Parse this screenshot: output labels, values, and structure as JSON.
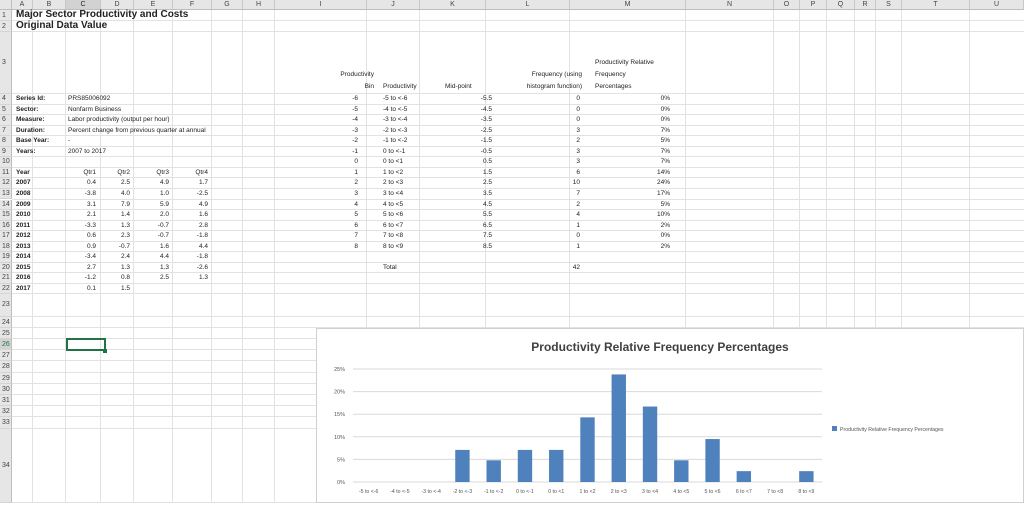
{
  "columns": [
    "A",
    "B",
    "C",
    "D",
    "E",
    "F",
    "G",
    "H",
    "I",
    "J",
    "K",
    "L",
    "M",
    "N",
    "O",
    "P",
    "Q",
    "R",
    "S",
    "T",
    "U"
  ],
  "rows": [
    "1",
    "2",
    "3",
    "4",
    "5",
    "6",
    "7",
    "8",
    "9",
    "10",
    "11",
    "12",
    "13",
    "14",
    "15",
    "16",
    "17",
    "18",
    "19",
    "20",
    "21",
    "22",
    "23",
    "24",
    "25",
    "26",
    "27",
    "28",
    "29",
    "30",
    "31",
    "32",
    "33",
    "34"
  ],
  "selected_column": "C",
  "selected_row": "26",
  "title": "Major Sector Productivity and Costs",
  "subtitle": "Original Data Value",
  "meta": [
    {
      "label": "Series Id:",
      "value": "PRS85006092"
    },
    {
      "label": "Sector:",
      "value": "Nonfarm Business"
    },
    {
      "label": "Measure:",
      "value": "Labor productivity (output per hour)"
    },
    {
      "label": "Duration:",
      "value": "Percent change from previous quarter at annual"
    },
    {
      "label": "Base Year:",
      "value": "-"
    },
    {
      "label": "Years:",
      "value": "2007 to 2017"
    }
  ],
  "quarter_table": {
    "header": [
      "Year",
      "Qtr1",
      "Qtr2",
      "Qtr3",
      "Qtr4"
    ],
    "rows": [
      [
        "2007",
        "0.4",
        "2.5",
        "4.9",
        "1.7"
      ],
      [
        "2008",
        "-3.8",
        "4.0",
        "1.0",
        "-2.5"
      ],
      [
        "2009",
        "3.1",
        "7.9",
        "5.9",
        "4.9"
      ],
      [
        "2010",
        "2.1",
        "1.4",
        "2.0",
        "1.6"
      ],
      [
        "2011",
        "-3.3",
        "1.3",
        "-0.7",
        "2.8"
      ],
      [
        "2012",
        "0.6",
        "2.3",
        "-0.7",
        "-1.8"
      ],
      [
        "2013",
        "0.9",
        "-0.7",
        "1.6",
        "4.4"
      ],
      [
        "2014",
        "-3.4",
        "2.4",
        "4.4",
        "-1.8"
      ],
      [
        "2015",
        "2.7",
        "1.3",
        "1.3",
        "-2.6"
      ],
      [
        "2016",
        "-1.2",
        "0.8",
        "2.5",
        "1.3"
      ],
      [
        "2017",
        "0.1",
        "1.5",
        "",
        ""
      ]
    ]
  },
  "freq_headers": {
    "bin_line1": "Productivity",
    "bin_line2": "Bin",
    "range": "Productivity",
    "midpoint": "Mid-point",
    "freq_line1": "Frequency (using",
    "freq_line2": "histogram function)",
    "rel_line1": "Productivity Relative",
    "rel_line2": "Frequency",
    "rel_line3": "Percentages"
  },
  "freq_table": [
    {
      "bin": "-6",
      "range": "-5 to <-6",
      "mid": "-5.5",
      "freq": "0",
      "pct": "0%"
    },
    {
      "bin": "-5",
      "range": "-4 to <-5",
      "mid": "-4.5",
      "freq": "0",
      "pct": "0%"
    },
    {
      "bin": "-4",
      "range": "-3 to <-4",
      "mid": "-3.5",
      "freq": "0",
      "pct": "0%"
    },
    {
      "bin": "-3",
      "range": "-2 to <-3",
      "mid": "-2.5",
      "freq": "3",
      "pct": "7%"
    },
    {
      "bin": "-2",
      "range": "-1 to <-2",
      "mid": "-1.5",
      "freq": "2",
      "pct": "5%"
    },
    {
      "bin": "-1",
      "range": "0 to <-1",
      "mid": "-0.5",
      "freq": "3",
      "pct": "7%"
    },
    {
      "bin": "0",
      "range": "0 to <1",
      "mid": "0.5",
      "freq": "3",
      "pct": "7%"
    },
    {
      "bin": "1",
      "range": "1 to <2",
      "mid": "1.5",
      "freq": "6",
      "pct": "14%"
    },
    {
      "bin": "2",
      "range": "2 to <3",
      "mid": "2.5",
      "freq": "10",
      "pct": "24%"
    },
    {
      "bin": "3",
      "range": "3 to <4",
      "mid": "3.5",
      "freq": "7",
      "pct": "17%"
    },
    {
      "bin": "4",
      "range": "4 to <5",
      "mid": "4.5",
      "freq": "2",
      "pct": "5%"
    },
    {
      "bin": "5",
      "range": "5 to <6",
      "mid": "5.5",
      "freq": "4",
      "pct": "10%"
    },
    {
      "bin": "6",
      "range": "6 to <7",
      "mid": "6.5",
      "freq": "1",
      "pct": "2%"
    },
    {
      "bin": "7",
      "range": "7 to <8",
      "mid": "7.5",
      "freq": "0",
      "pct": "0%"
    },
    {
      "bin": "8",
      "range": "8 to <9",
      "mid": "8.5",
      "freq": "1",
      "pct": "2%"
    }
  ],
  "total_label": "Total",
  "total_value": "42",
  "colors": {
    "bar": "#4f81bd",
    "grid": "#d9d9d9",
    "header_bg": "#e6e6e6",
    "select": "#217346"
  },
  "chart_data": {
    "type": "bar",
    "title": "Productivity Relative Frequency Percentages",
    "categories": [
      "-5 to <-6",
      "-4 to <-5",
      "-3 to <-4",
      "-2 to <-3",
      "-1 to <-2",
      "0 to <-1",
      "0 to <1",
      "1 to <2",
      "2 to <3",
      "3 to <4",
      "4 to <5",
      "5 to <6",
      "6 to <7",
      "7 to <8",
      "8 to <9"
    ],
    "series": [
      {
        "name": "Productivity Relative Frequency Percentages",
        "values": [
          0,
          0,
          0,
          7.1,
          4.8,
          7.1,
          7.1,
          14.3,
          23.8,
          16.7,
          4.8,
          9.5,
          2.4,
          0,
          2.4
        ]
      }
    ],
    "yticks": [
      "0%",
      "5%",
      "10%",
      "15%",
      "20%",
      "25%"
    ],
    "ylim": [
      0,
      25
    ],
    "grid": true,
    "legend_position": "right"
  }
}
